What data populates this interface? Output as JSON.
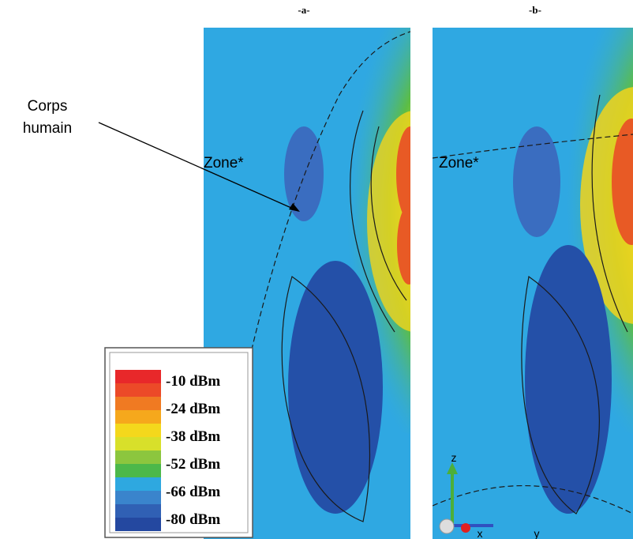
{
  "panels": [
    {
      "label": "-a-",
      "zone_label": "Zone*"
    },
    {
      "label": "-b-",
      "zone_label": "Zone*"
    }
  ],
  "annotation": {
    "lines": [
      "Corps",
      "humain"
    ]
  },
  "legend": {
    "entries": [
      "-10 dBm",
      "-24 dBm",
      "-38 dBm",
      "-52 dBm",
      "-66 dBm",
      "-80 dBm"
    ]
  },
  "axes_triad": {
    "labels": [
      "z",
      "x",
      "y"
    ]
  }
}
